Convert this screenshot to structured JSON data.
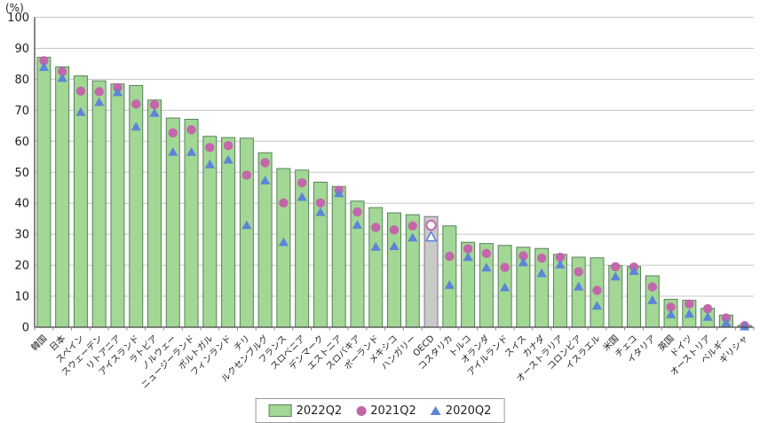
{
  "chart_data": {
    "type": "bar",
    "title": "",
    "unit_label": "(%)",
    "xlabel": "",
    "ylabel": "(%)",
    "ylim": [
      0,
      100
    ],
    "ytick_step": 10,
    "grid": true,
    "legend_position": "bottom-center",
    "highlight_category": "OECD",
    "highlight_bar_color": "#c9c9c9",
    "highlight_bar_border": "#7a7a7a",
    "categories": [
      "韓国",
      "日本",
      "スペイン",
      "スウェーデン",
      "リトアニア",
      "アイスランド",
      "ラトビア",
      "ノルウェー",
      "ニュージーランド",
      "ポルトガル",
      "フィンランド",
      "チリ",
      "ルクセンブルグ",
      "フランス",
      "スロベニア",
      "デンマーク",
      "エストニア",
      "スロバキア",
      "ポーランド",
      "メキシコ",
      "ハンガリー",
      "OECD",
      "コスタリカ",
      "トルコ",
      "オランダ",
      "アイルランド",
      "スイス",
      "カナダ",
      "オーストラリア",
      "コロンビア",
      "イスラエル",
      "米国",
      "チェコ",
      "イタリア",
      "英国",
      "ドイツ",
      "オーストリア",
      "ベルギー",
      "ギリシャ"
    ],
    "series": [
      {
        "name": "2022Q2",
        "marker": "bar",
        "color": "#a2d795",
        "border": "#57835a",
        "values": [
          87.1,
          84.0,
          81.1,
          79.5,
          78.5,
          78.0,
          73.3,
          67.5,
          67.1,
          61.6,
          61.2,
          61.0,
          56.3,
          51.2,
          50.7,
          46.8,
          45.4,
          40.7,
          38.6,
          36.9,
          36.3,
          35.7,
          32.7,
          27.4,
          27.0,
          26.4,
          25.8,
          25.4,
          23.5,
          22.6,
          22.4,
          19.9,
          19.6,
          16.6,
          9.0,
          8.7,
          6.1,
          3.9,
          0.6
        ]
      },
      {
        "name": "2021Q2",
        "marker": "circle",
        "color": "#c466ab",
        "values": [
          86.0,
          82.5,
          76.2,
          76.0,
          77.3,
          72.0,
          71.8,
          62.7,
          63.7,
          58.0,
          58.6,
          49.1,
          53.1,
          40.1,
          46.6,
          40.1,
          44.2,
          37.2,
          32.2,
          31.4,
          32.7,
          32.9,
          22.9,
          25.3,
          23.8,
          19.3,
          23.0,
          22.3,
          22.6,
          17.9,
          11.9,
          19.5,
          19.4,
          13.0,
          6.5,
          7.5,
          6.0,
          3.0,
          0.5
        ]
      },
      {
        "name": "2020Q2",
        "marker": "triangle",
        "color": "#5c85d6",
        "values": [
          84.0,
          80.5,
          69.5,
          72.7,
          75.9,
          64.8,
          69.2,
          56.6,
          56.6,
          52.6,
          54.1,
          33.0,
          47.4,
          27.5,
          42.1,
          37.2,
          43.3,
          33.1,
          26.0,
          26.2,
          29.0,
          29.2,
          13.7,
          22.7,
          19.3,
          12.9,
          21.0,
          17.5,
          20.3,
          13.2,
          7.0,
          16.4,
          18.2,
          8.8,
          4.2,
          4.4,
          3.4,
          1.5,
          0.3
        ]
      }
    ],
    "axis_color": "#444444",
    "grid_color": "#c4c4c4",
    "tick_label_color": "#222222"
  }
}
